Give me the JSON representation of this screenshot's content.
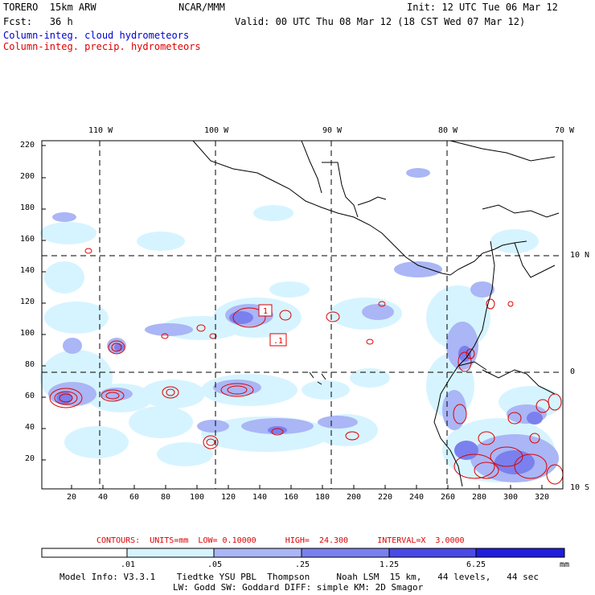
{
  "header": {
    "model": "TORERO  15km ARW",
    "org": "NCAR/MMM",
    "init": "Init: 12 UTC Tue 06 Mar 12",
    "fcst": "Fcst:   36 h",
    "valid": "Valid: 00 UTC Thu 08 Mar 12 (18 CST Wed 07 Mar 12)",
    "field1": "Column-integ. cloud hydrometeors",
    "field2": "Column-integ. precip. hydrometeors"
  },
  "axes": {
    "lon_labels": [
      "110 W",
      "100 W",
      "90 W",
      "80 W",
      "70 W"
    ],
    "lat_labels": [
      "10 N",
      "0",
      "10 S"
    ],
    "y_ticks": [
      "220",
      "200",
      "180",
      "160",
      "140",
      "120",
      "100",
      "80",
      "60",
      "40",
      "20"
    ],
    "x_ticks": [
      "20",
      "40",
      "60",
      "80",
      "100",
      "120",
      "140",
      "160",
      "180",
      "200",
      "220",
      "240",
      "260",
      "280",
      "300",
      "320"
    ]
  },
  "map_labels": {
    "contour_box_1": "1",
    "contour_box_2": ".1"
  },
  "contours": "CONTOURS:  UNITS=mm  LOW= 0.10000      HIGH=  24.300      INTERVAL=X  3.0000",
  "colorbar": {
    "labels": [
      ".01",
      ".05",
      ".25",
      "1.25",
      "6.25"
    ],
    "unit": "mm",
    "colors": [
      "#ffffff",
      "#d6f4ff",
      "#aab6f5",
      "#7a80ee",
      "#4a4ae6",
      "#1e1edc"
    ]
  },
  "footer": {
    "line1": "Model Info: V3.3.1    Tiedtke YSU PBL  Thompson     Noah LSM  15 km,   44 levels,   44 sec",
    "line2": "LW: Godd SW: Goddard DIFF: simple KM: 2D Smagor"
  },
  "colors": {
    "cloud_light": "#d6f4ff",
    "cloud_mid": "#aab6f5",
    "cloud_dark": "#7a80ee",
    "precip_contour": "#dd0000"
  }
}
